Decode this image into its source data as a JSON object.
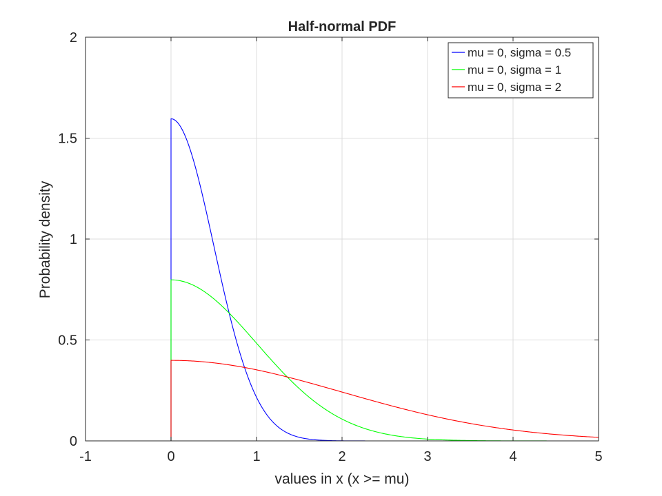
{
  "chart_data": {
    "type": "line",
    "title": "Half-normal PDF",
    "xlabel": "values in x (x >= mu)",
    "ylabel": "Probability density",
    "xlim": [
      -1,
      5
    ],
    "ylim": [
      0,
      2
    ],
    "xticks": [
      -1,
      0,
      1,
      2,
      3,
      4,
      5
    ],
    "xtick_labels": [
      "-1",
      "0",
      "1",
      "2",
      "3",
      "4",
      "5"
    ],
    "yticks": [
      0,
      0.5,
      1,
      1.5,
      2
    ],
    "ytick_labels": [
      "0",
      "0.5",
      "1",
      "1.5",
      "2"
    ],
    "grid": true,
    "legend_position": "top-right",
    "series": [
      {
        "name": "mu = 0, sigma = 0.5",
        "color": "#0000ff",
        "mu": 0,
        "sigma": 0.5
      },
      {
        "name": "mu = 0, sigma = 1",
        "color": "#00ff00",
        "mu": 0,
        "sigma": 1
      },
      {
        "name": "mu = 0, sigma = 2",
        "color": "#ff0000",
        "mu": 0,
        "sigma": 2
      }
    ]
  }
}
